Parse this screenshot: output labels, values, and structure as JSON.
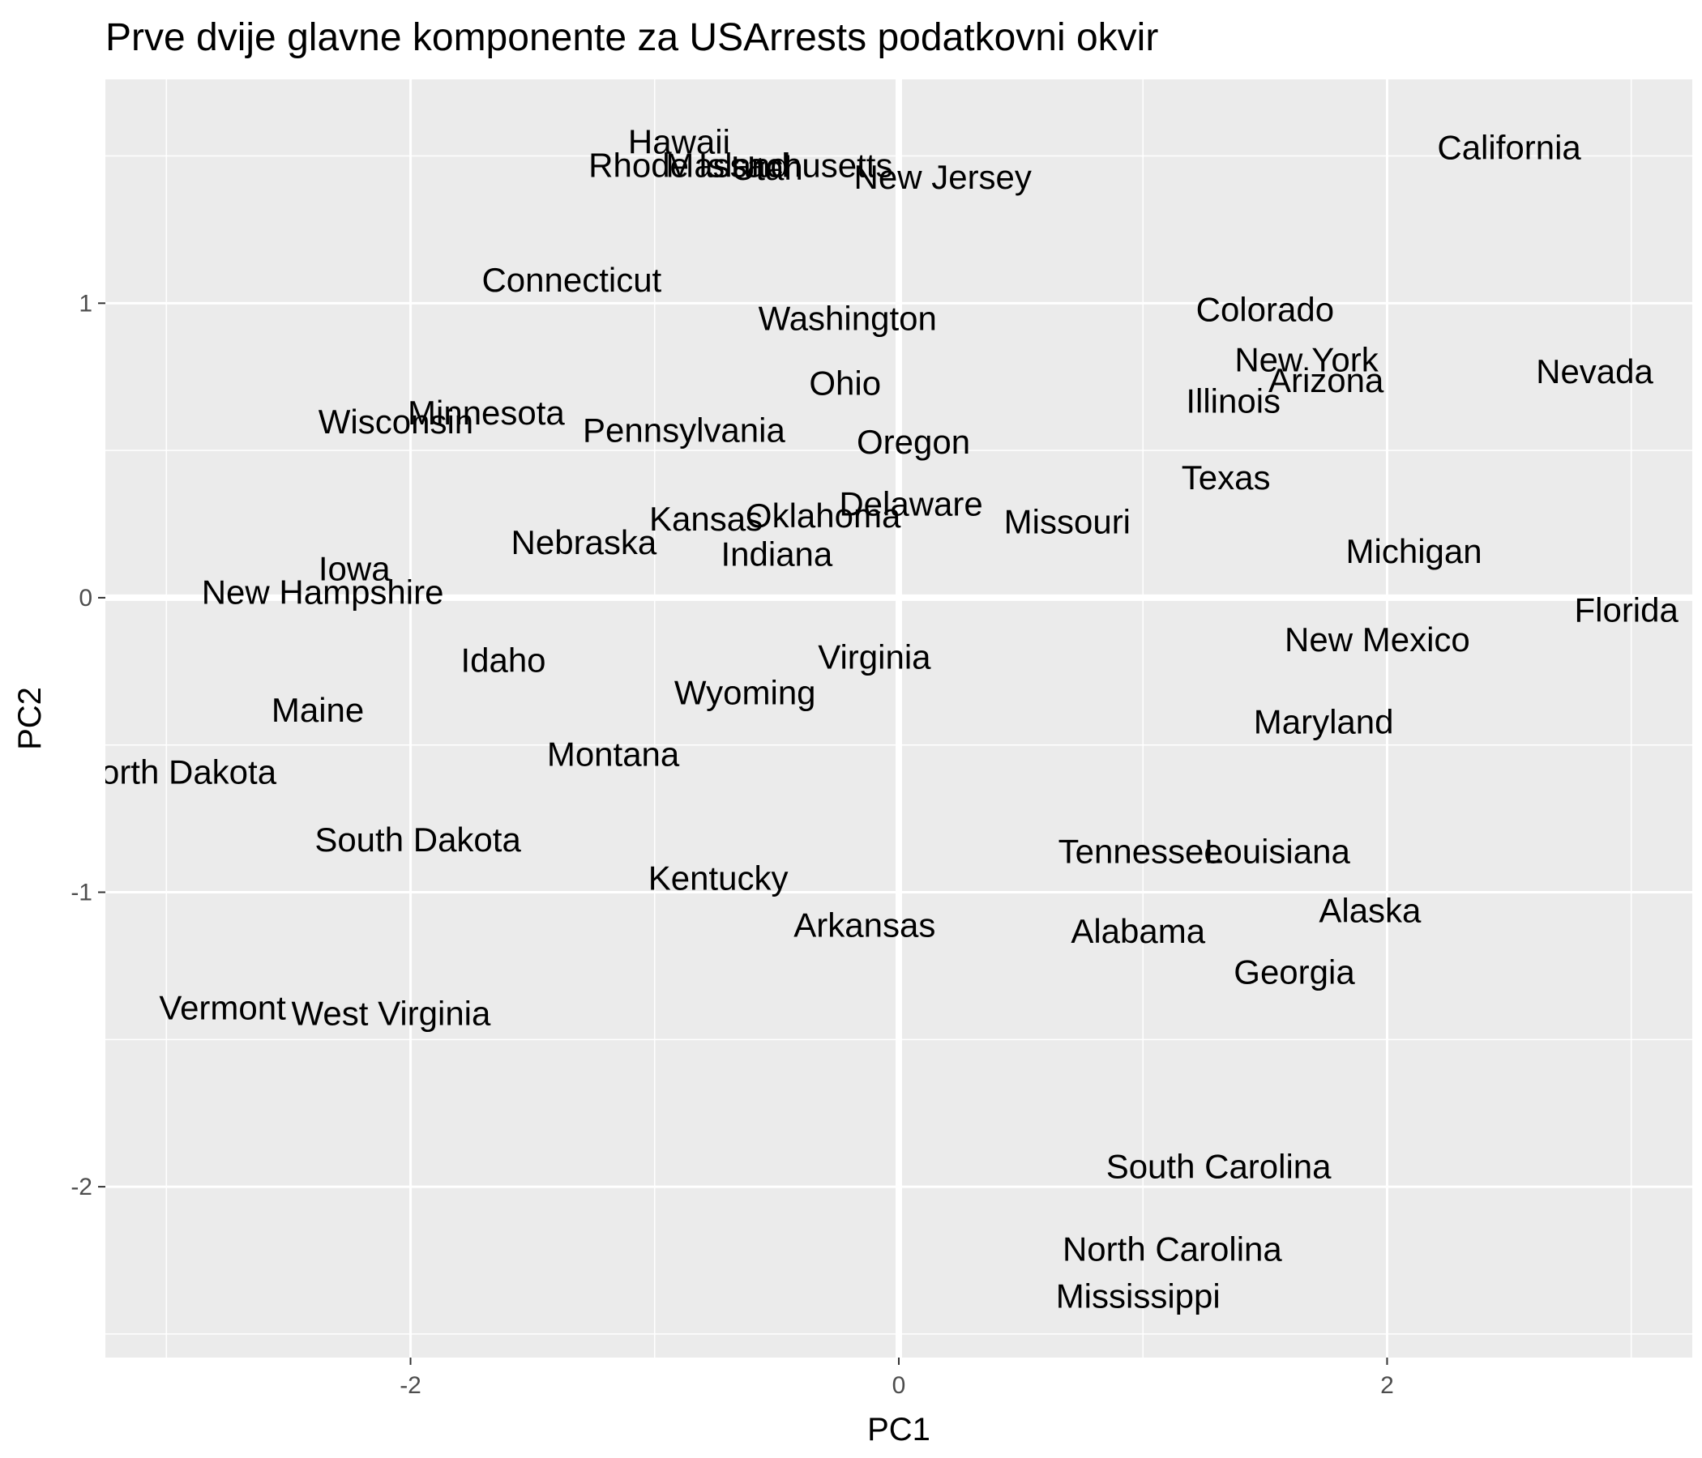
{
  "chart_data": {
    "type": "scatter",
    "title": "Prve dvije glavne komponente za USArrests podatkovni okvir",
    "xlabel": "PC1",
    "ylabel": "PC2",
    "xlim": [
      -3.25,
      3.25
    ],
    "ylim": [
      -2.58,
      1.76
    ],
    "x_ticks": [
      -2,
      0,
      2
    ],
    "y_ticks": [
      -2,
      -1,
      0,
      1
    ],
    "x_tick_labels": [
      "-2",
      "0",
      "2"
    ],
    "y_tick_labels": [
      "-2",
      "-1",
      "0",
      "1"
    ],
    "grid": true,
    "legend": "none",
    "background_color": "#ebebeb",
    "grid_color": "#ffffff",
    "points": [
      {
        "label": "Alabama",
        "x": 0.98,
        "y": -1.13
      },
      {
        "label": "Alaska",
        "x": 1.93,
        "y": -1.06
      },
      {
        "label": "Arizona",
        "x": 1.75,
        "y": 0.74
      },
      {
        "label": "Arkansas",
        "x": -0.14,
        "y": -1.11
      },
      {
        "label": "California",
        "x": 2.5,
        "y": 1.53
      },
      {
        "label": "Colorado",
        "x": 1.5,
        "y": 0.98
      },
      {
        "label": "Connecticut",
        "x": -1.34,
        "y": 1.08
      },
      {
        "label": "Delaware",
        "x": 0.05,
        "y": 0.32
      },
      {
        "label": "Florida",
        "x": 2.98,
        "y": -0.04
      },
      {
        "label": "Georgia",
        "x": 1.62,
        "y": -1.27
      },
      {
        "label": "Hawaii",
        "x": -0.9,
        "y": 1.55
      },
      {
        "label": "Idaho",
        "x": -1.62,
        "y": -0.21
      },
      {
        "label": "Illinois",
        "x": 1.37,
        "y": 0.67
      },
      {
        "label": "Indiana",
        "x": -0.5,
        "y": 0.15
      },
      {
        "label": "Iowa",
        "x": -2.23,
        "y": 0.1
      },
      {
        "label": "Kansas",
        "x": -0.79,
        "y": 0.27
      },
      {
        "label": "Kentucky",
        "x": -0.74,
        "y": -0.95
      },
      {
        "label": "Louisiana",
        "x": 1.55,
        "y": -0.86
      },
      {
        "label": "Maine",
        "x": -2.38,
        "y": -0.38
      },
      {
        "label": "Maryland",
        "x": 1.74,
        "y": -0.42
      },
      {
        "label": "Massachusetts",
        "x": -0.49,
        "y": 1.47
      },
      {
        "label": "Michigan",
        "x": 2.11,
        "y": 0.16
      },
      {
        "label": "Minnesota",
        "x": -1.69,
        "y": 0.63
      },
      {
        "label": "Mississippi",
        "x": 0.98,
        "y": -2.37
      },
      {
        "label": "Missouri",
        "x": 0.69,
        "y": 0.26
      },
      {
        "label": "Montana",
        "x": -1.17,
        "y": -0.53
      },
      {
        "label": "Nebraska",
        "x": -1.29,
        "y": 0.19
      },
      {
        "label": "Nevada",
        "x": 2.85,
        "y": 0.77
      },
      {
        "label": "New Hampshire",
        "x": -2.36,
        "y": 0.02
      },
      {
        "label": "New Jersey",
        "x": 0.18,
        "y": 1.43
      },
      {
        "label": "New Mexico",
        "x": 1.96,
        "y": -0.14
      },
      {
        "label": "New York",
        "x": 1.67,
        "y": 0.81
      },
      {
        "label": "North Carolina",
        "x": 1.12,
        "y": -2.21
      },
      {
        "label": "North Dakota",
        "x": -2.96,
        "y": -0.59
      },
      {
        "label": "Ohio",
        "x": -0.22,
        "y": 0.73
      },
      {
        "label": "Oklahoma",
        "x": -0.31,
        "y": 0.28
      },
      {
        "label": "Oregon",
        "x": 0.06,
        "y": 0.53
      },
      {
        "label": "Pennsylvania",
        "x": -0.88,
        "y": 0.57
      },
      {
        "label": "Rhode Island",
        "x": -0.86,
        "y": 1.47
      },
      {
        "label": "South Carolina",
        "x": 1.31,
        "y": -1.93
      },
      {
        "label": "South Dakota",
        "x": -1.97,
        "y": -0.82
      },
      {
        "label": "Tennessee",
        "x": 0.99,
        "y": -0.86
      },
      {
        "label": "Texas",
        "x": 1.34,
        "y": 0.41
      },
      {
        "label": "Utah",
        "x": -0.54,
        "y": 1.46
      },
      {
        "label": "Vermont",
        "x": -2.77,
        "y": -1.39
      },
      {
        "label": "Virginia",
        "x": -0.1,
        "y": -0.2
      },
      {
        "label": "Washington",
        "x": -0.21,
        "y": 0.95
      },
      {
        "label": "West Virginia",
        "x": -2.08,
        "y": -1.41
      },
      {
        "label": "Wisconsin",
        "x": -2.06,
        "y": 0.6
      },
      {
        "label": "Wyoming",
        "x": -0.63,
        "y": -0.32
      }
    ]
  }
}
